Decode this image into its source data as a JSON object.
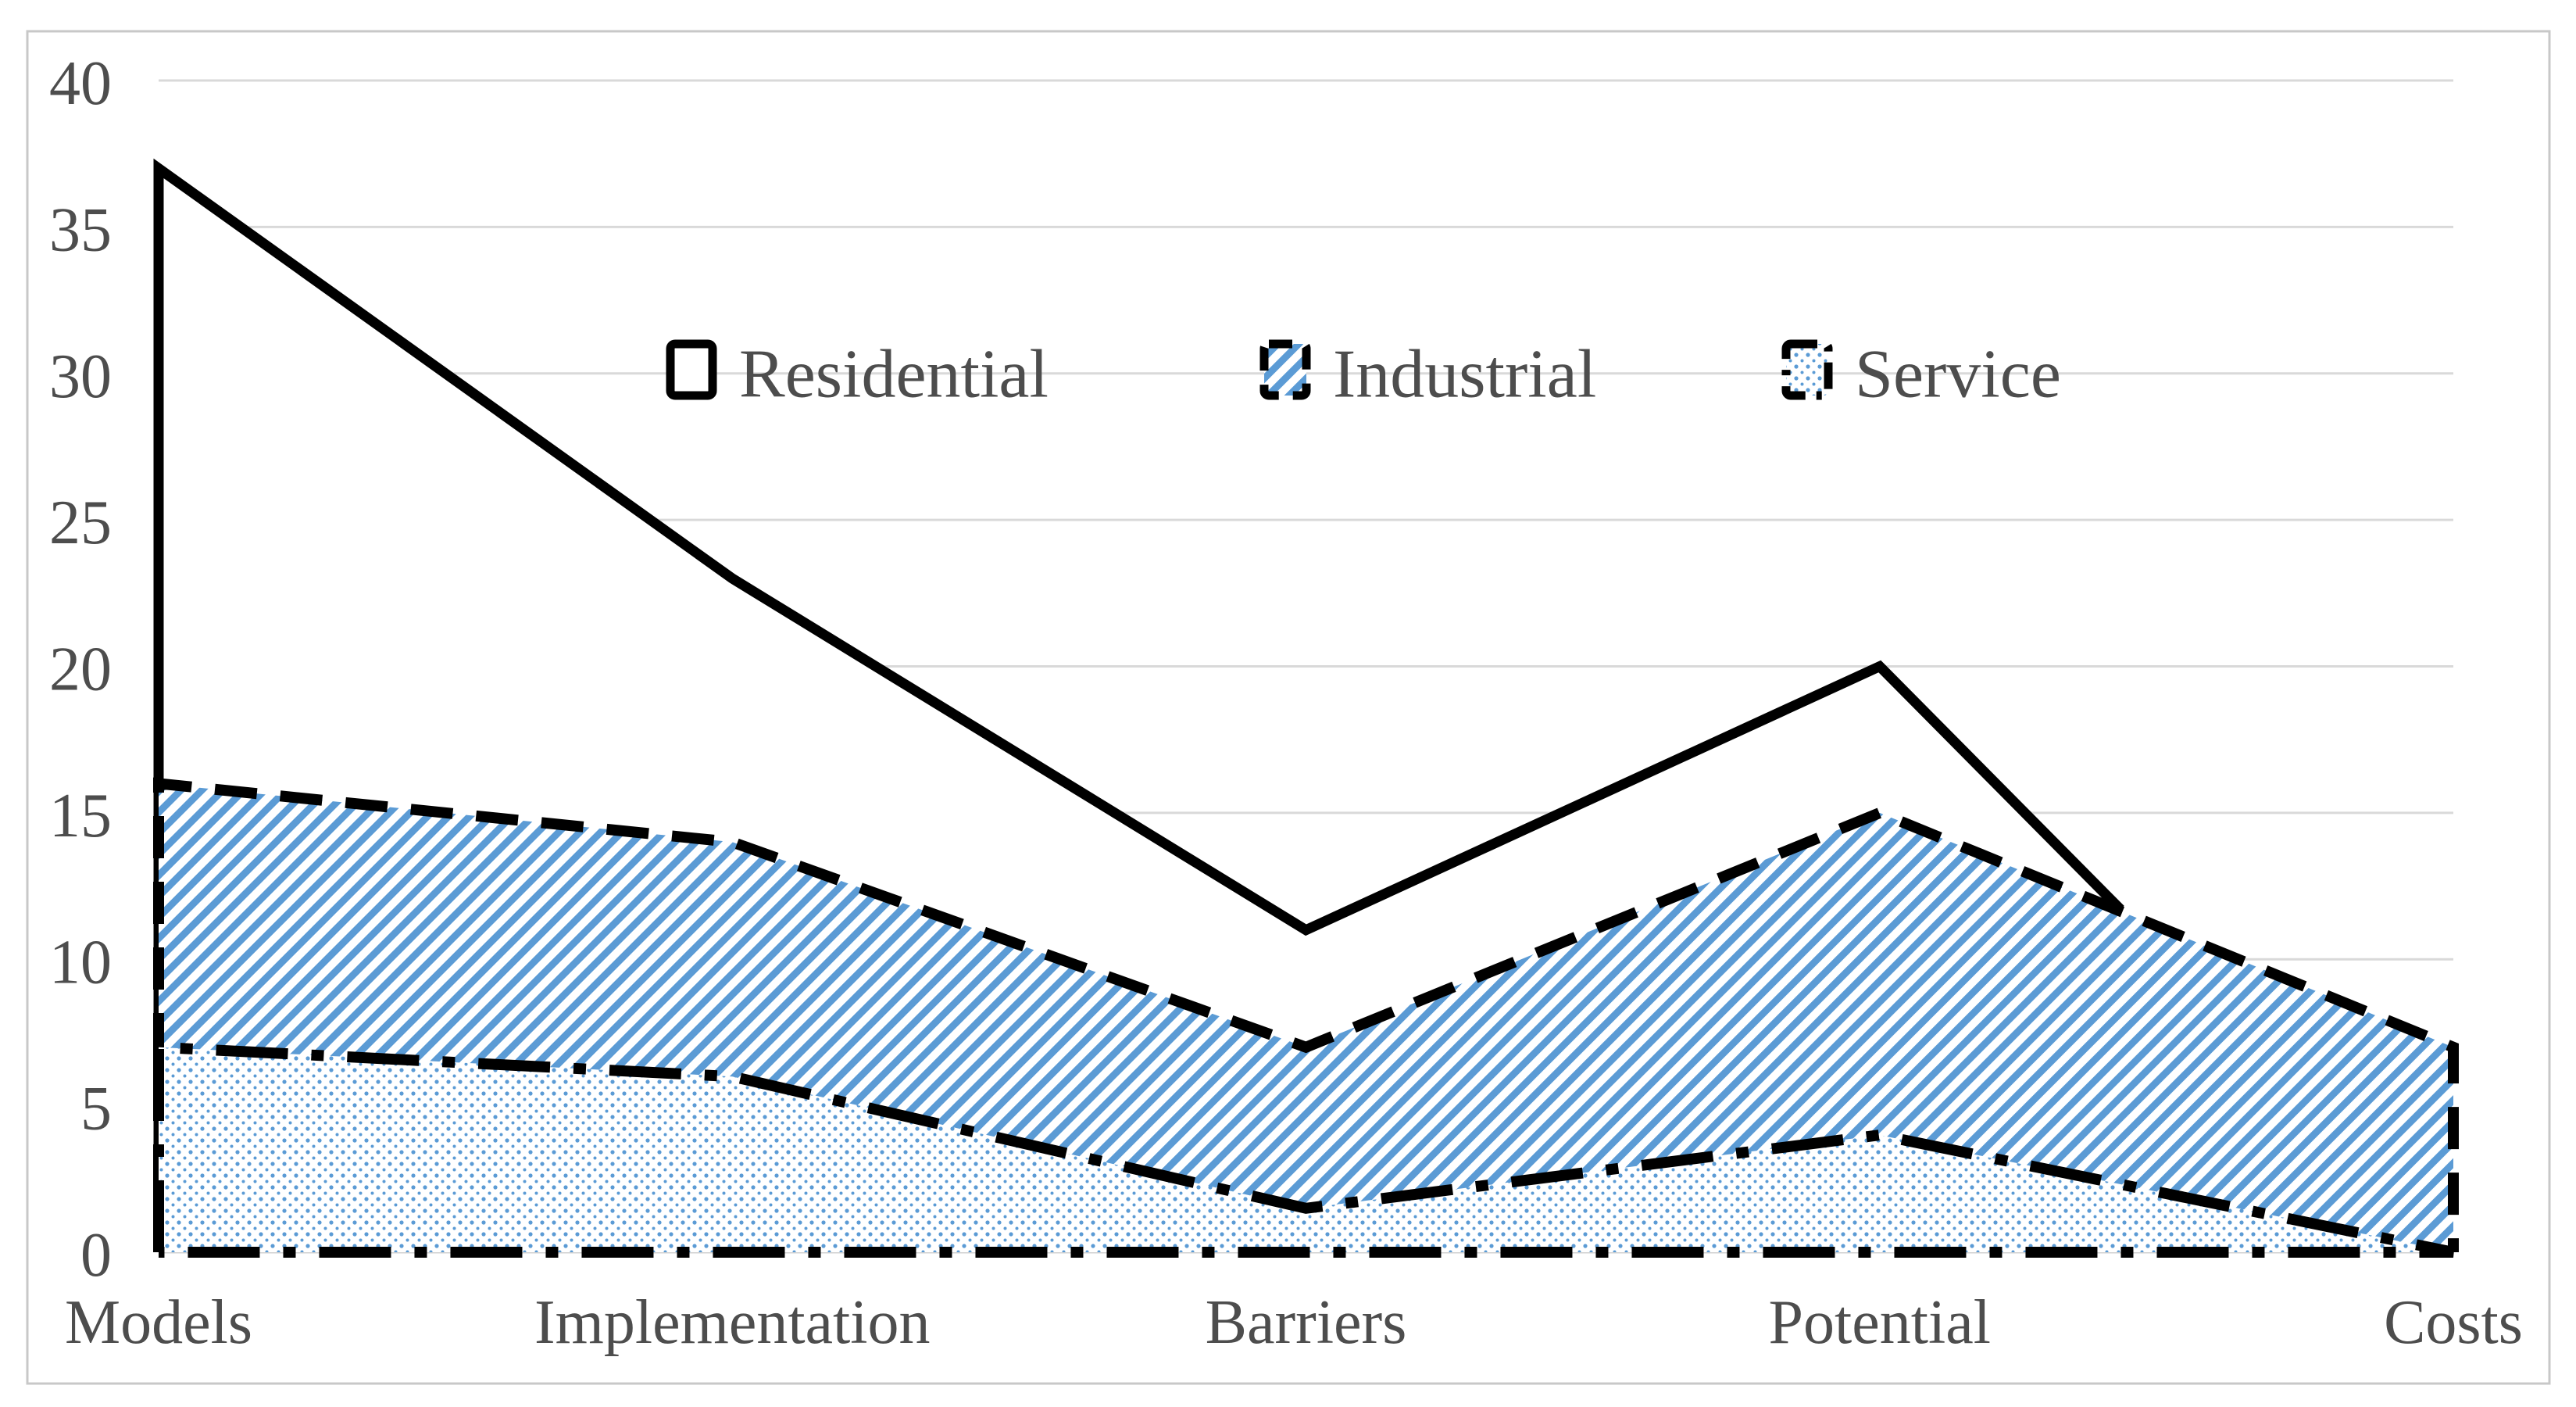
{
  "chart_data": {
    "type": "area",
    "title": "",
    "xlabel": "",
    "ylabel": "",
    "categories": [
      "Models",
      "Implementation",
      "Barriers",
      "Potential",
      "Costs"
    ],
    "series": [
      {
        "name": "Residential",
        "values": [
          37,
          23,
          11,
          20,
          7
        ],
        "line_style": "solid",
        "fill_pattern": "none",
        "drawn_points": [
          [
            0,
            37
          ],
          [
            1,
            23
          ],
          [
            2,
            11
          ],
          [
            3,
            20
          ],
          [
            3.42,
            11.7
          ]
        ],
        "note": "solid boundary line visually merges into the Industrial dashed boundary between Potential and Costs"
      },
      {
        "name": "Industrial",
        "values": [
          16,
          14,
          7,
          15,
          7
        ],
        "line_style": "dashed",
        "fill_pattern": "diagonal-hatch",
        "drawn_points": [
          [
            0,
            16
          ],
          [
            1,
            14
          ],
          [
            2,
            7
          ],
          [
            3,
            15
          ],
          [
            4,
            7
          ]
        ]
      },
      {
        "name": "Service",
        "values": [
          7,
          6,
          1.5,
          4,
          0
        ],
        "line_style": "dash-dot",
        "fill_pattern": "dots",
        "drawn_points": [
          [
            0,
            7
          ],
          [
            1,
            6
          ],
          [
            2,
            1.5
          ],
          [
            3,
            4
          ],
          [
            4,
            0
          ]
        ]
      }
    ],
    "ylim": [
      0,
      40
    ],
    "ytick_step": 5,
    "yticks": [
      40,
      35,
      30,
      25,
      20,
      15,
      10,
      5,
      0
    ],
    "grid": true,
    "legend": {
      "position": "inside-top",
      "items": [
        "Residential",
        "Industrial",
        "Service"
      ]
    },
    "colors": {
      "pattern_blue": "#5B9BD5",
      "line_black": "#000000",
      "gridline": "#D9D9D9",
      "axis_line": "#D1D1D1",
      "axis_text": "#4D4D4D",
      "chart_border": "#C8C8C8",
      "background": "#FFFFFF"
    }
  }
}
